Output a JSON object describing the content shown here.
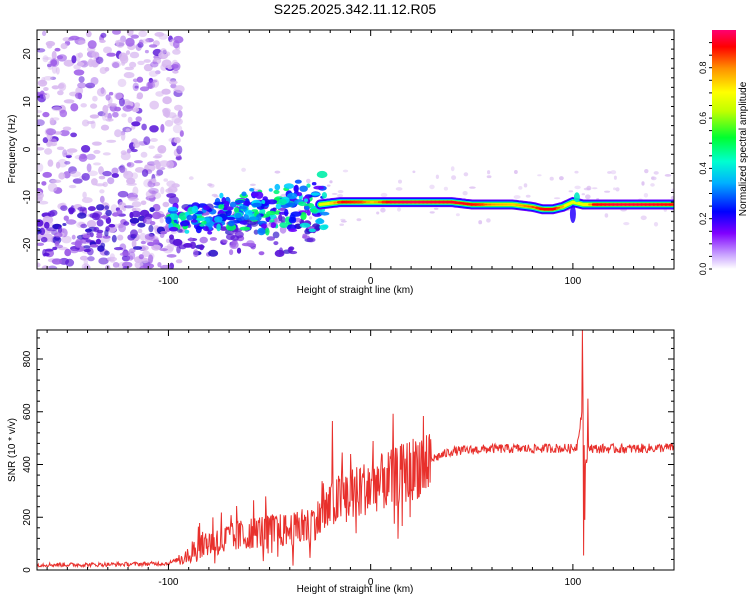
{
  "title": "S225.2025.342.11.12.R05",
  "colors": {
    "snr_line": "#e8302c",
    "axis": "#000000",
    "scatter_light": "#d8b8f0",
    "scatter_mid": "#a060e8",
    "scatter_dark": "#5a16d8",
    "ridge_core": "#e83030"
  },
  "chart_data": [
    {
      "type": "heatmap",
      "title": "S225.2025.342.11.12.R05",
      "xlabel": "Height of straight line (km)",
      "ylabel": "Frequency (Hz)",
      "xlim": [
        -165,
        150
      ],
      "ylim": [
        -25,
        25
      ],
      "x_ticks": [
        -100,
        0,
        100
      ],
      "y_ticks": [
        -20,
        -10,
        0,
        10,
        20
      ],
      "grid": false,
      "colorbar": {
        "label": "Normalized spectral amplitude",
        "range": [
          0.0,
          0.95
        ],
        "ticks": [
          0.0,
          0.2,
          0.4,
          0.6,
          0.8
        ],
        "colormap": [
          "#ffffff",
          "#8000ff",
          "#0000ff",
          "#00e0ff",
          "#00ff40",
          "#c0ff00",
          "#ffff00",
          "#ffa000",
          "#ff0000",
          "#ff0070"
        ]
      },
      "ridge": {
        "x": [
          -100,
          -80,
          -60,
          -40,
          -25,
          -15,
          -5,
          0,
          10,
          20,
          30,
          40,
          50,
          60,
          70,
          80,
          85,
          90,
          95,
          100,
          105,
          110,
          120,
          130,
          140,
          150
        ],
        "freq": [
          -15,
          -14,
          -13,
          -12,
          -11.5,
          -11,
          -11,
          -11,
          -11,
          -11,
          -11,
          -11,
          -11.5,
          -11.5,
          -11.5,
          -12,
          -12.5,
          -12.5,
          -12,
          -11,
          -11.5,
          -11.5,
          -11.5,
          -11.5,
          -11.5,
          -11.5
        ],
        "peak_amplitude": [
          0.25,
          0.35,
          0.3,
          0.35,
          0.5,
          0.85,
          0.8,
          0.7,
          0.9,
          0.92,
          0.9,
          0.88,
          0.85,
          0.75,
          0.7,
          0.8,
          0.85,
          0.85,
          0.7,
          0.3,
          0.6,
          0.85,
          0.9,
          0.9,
          0.88,
          0.85
        ]
      }
    },
    {
      "type": "line",
      "xlabel": "Height of straight line (km)",
      "ylabel": "SNR (10 * v/v)",
      "xlim": [
        -165,
        150
      ],
      "ylim": [
        0,
        910
      ],
      "x_ticks": [
        -100,
        0,
        100
      ],
      "y_ticks": [
        0,
        200,
        400,
        600,
        800
      ],
      "grid": false,
      "series": [
        {
          "x": [
            -165,
            -140,
            -120,
            -100,
            -95,
            -90,
            -85,
            -80,
            -70,
            -60,
            -50,
            -40,
            -30,
            -25,
            -20,
            -15,
            -10,
            -5,
            0,
            10,
            20,
            30,
            40,
            50,
            60,
            70,
            80,
            90,
            100,
            102,
            104,
            105,
            106,
            108,
            110,
            120,
            130,
            140,
            150
          ],
          "values": [
            20,
            20,
            22,
            25,
            40,
            65,
            90,
            105,
            120,
            140,
            150,
            150,
            170,
            200,
            240,
            275,
            290,
            300,
            320,
            345,
            380,
            420,
            450,
            455,
            460,
            460,
            460,
            462,
            460,
            470,
            580,
            650,
            380,
            470,
            460,
            460,
            460,
            462,
            465
          ],
          "spikes": [
            {
              "x": -19,
              "value": 565
            },
            {
              "x": 104.8,
              "value": 910
            },
            {
              "x": 105.2,
              "value": 55
            },
            {
              "x": 105.8,
              "value": 190
            },
            {
              "x": 107.5,
              "value": 650
            }
          ]
        }
      ]
    }
  ]
}
